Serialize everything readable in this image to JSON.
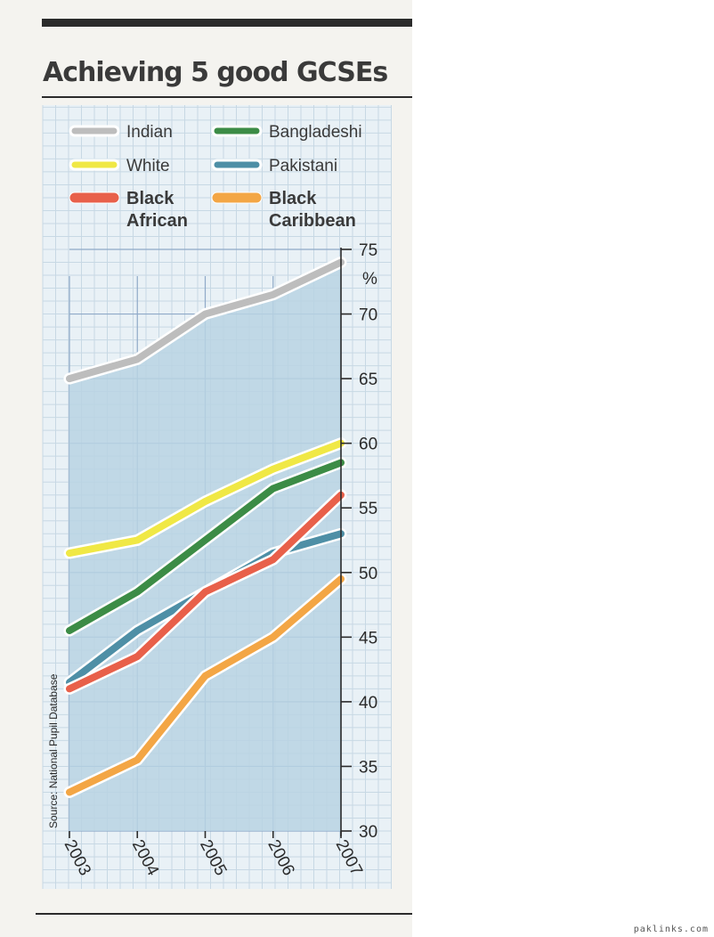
{
  "title": "Achieving 5 good GCSEs",
  "watermark": "paklinks.com",
  "chart_data": {
    "type": "line",
    "title": "Achieving 5 good GCSEs",
    "xlabel": "",
    "ylabel": "%",
    "source": "Source: National Pupil Database",
    "x": [
      "2003",
      "2004",
      "2005",
      "2006",
      "2007"
    ],
    "ylim": [
      30,
      75
    ],
    "yticks": [
      30,
      35,
      40,
      45,
      50,
      55,
      60,
      65,
      70,
      75
    ],
    "grid": true,
    "legend_position": "top",
    "series": [
      {
        "name": "Indian",
        "values": [
          65.0,
          66.5,
          70.0,
          71.5,
          74.0
        ],
        "color": "#bdbdbd"
      },
      {
        "name": "Bangladeshi",
        "values": [
          45.5,
          48.5,
          52.5,
          56.5,
          58.5
        ],
        "color": "#3c8c46"
      },
      {
        "name": "White",
        "values": [
          51.5,
          52.5,
          55.5,
          58.0,
          60.0
        ],
        "color": "#f0e845"
      },
      {
        "name": "Pakistani",
        "values": [
          41.5,
          45.5,
          48.5,
          51.5,
          53.0
        ],
        "color": "#4e8fa6"
      },
      {
        "name": "Black African",
        "values": [
          41.0,
          43.5,
          48.5,
          51.0,
          56.0
        ],
        "color": "#e8604a"
      },
      {
        "name": "Black Caribbean",
        "values": [
          33.0,
          35.5,
          42.0,
          45.0,
          49.5
        ],
        "color": "#f3a645"
      }
    ],
    "legend": [
      {
        "series": 0,
        "lines": [
          "Indian"
        ],
        "bold": false
      },
      {
        "series": 1,
        "lines": [
          "Bangladeshi"
        ],
        "bold": false
      },
      {
        "series": 2,
        "lines": [
          "White"
        ],
        "bold": false
      },
      {
        "series": 3,
        "lines": [
          "Pakistani"
        ],
        "bold": false
      },
      {
        "series": 4,
        "lines": [
          "Black",
          "African"
        ],
        "bold": true
      },
      {
        "series": 5,
        "lines": [
          "Black",
          "Caribbean"
        ],
        "bold": true
      }
    ],
    "fill_under_series": "Indian",
    "fill_color": "#b9d3e3"
  }
}
